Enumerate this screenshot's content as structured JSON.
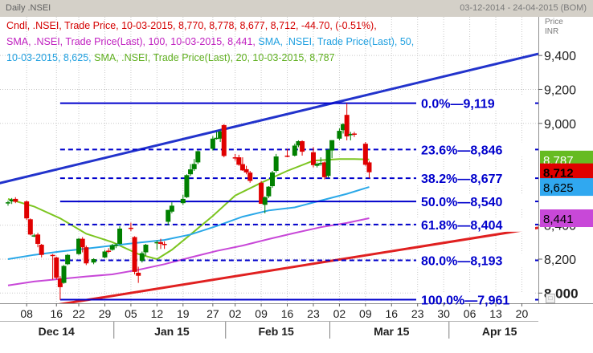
{
  "header": {
    "left_label": "Daily  .NSEI",
    "date_range": "03-12-2014 - 24-04-2015 (BOM)"
  },
  "legend": {
    "candle": "Cndl, .NSEI, Trade Price, 10-03-2015, 8,770, 8,778, 8,677, 8,712, -44.70, (-0.51%),",
    "sma100": "SMA, .NSEI, Trade Price(Last),  100, 10-03-2015, 8,441,",
    "sma50_a": "SMA, .NSEI, Trade Price(Last),  50,",
    "sma50_b": "10-03-2015, 8,625,",
    "sma20": "SMA, .NSEI, Trade Price(Last),  20, 10-03-2015, 8,787"
  },
  "price_axis_header": [
    "Price",
    "INR"
  ],
  "colors": {
    "candle_up": "#008000",
    "candle_down": "#e00000",
    "sma20": "#7cc520",
    "sma50": "#2aa8e8",
    "sma100": "#c848d8",
    "fib": "#0000cc",
    "trend_up": "#2233cc",
    "trend_support": "#e02020",
    "grid": "#c8c8c8",
    "sma20_tag": "#66bb22",
    "last_tag": "#e00000",
    "sma50_tag": "#30a8f0",
    "sma100_tag": "#c848d8"
  },
  "chart_data": {
    "type": "candlestick",
    "title": ".NSEI Daily",
    "ylim": [
      7940,
      9500
    ],
    "yticks": [
      {
        "value": 8000,
        "label": "8,000",
        "highlight": true
      },
      {
        "value": 8200,
        "label": "8,200",
        "highlight": false
      },
      {
        "value": 8400,
        "label": "8,400",
        "highlight": false
      },
      {
        "value": 9000,
        "label": "9,000",
        "highlight": false
      },
      {
        "value": 9200,
        "label": "9,200",
        "highlight": false
      },
      {
        "value": 9400,
        "label": "9,400",
        "highlight": false
      }
    ],
    "xticks": [
      {
        "date": "2014-12-08",
        "label": "08"
      },
      {
        "date": "2014-12-16",
        "label": "16"
      },
      {
        "date": "2014-12-22",
        "label": "22"
      },
      {
        "date": "2014-12-29",
        "label": "29"
      },
      {
        "date": "2015-01-05",
        "label": "05"
      },
      {
        "date": "2015-01-12",
        "label": "12"
      },
      {
        "date": "2015-01-19",
        "label": "19"
      },
      {
        "date": "2015-01-27",
        "label": "27"
      },
      {
        "date": "2015-02-02",
        "label": "02"
      },
      {
        "date": "2015-02-09",
        "label": "09"
      },
      {
        "date": "2015-02-16",
        "label": "16"
      },
      {
        "date": "2015-02-23",
        "label": "23"
      },
      {
        "date": "2015-03-02",
        "label": "02"
      },
      {
        "date": "2015-03-09",
        "label": "09"
      },
      {
        "date": "2015-03-16",
        "label": "16"
      },
      {
        "date": "2015-03-23",
        "label": "23"
      },
      {
        "date": "2015-03-30",
        "label": "30"
      },
      {
        "date": "2015-04-06",
        "label": "06"
      },
      {
        "date": "2015-04-13",
        "label": "13"
      },
      {
        "date": "2015-04-20",
        "label": "20"
      }
    ],
    "months": [
      {
        "date": "2014-12-16",
        "label": "Dec 14"
      },
      {
        "date": "2015-01-16",
        "label": "Jan 15"
      },
      {
        "date": "2015-02-13",
        "label": "Feb 15"
      },
      {
        "date": "2015-03-16",
        "label": "Mar 15"
      },
      {
        "date": "2015-04-14",
        "label": "Apr 15"
      }
    ],
    "month_separators": [
      "2014-12-31",
      "2015-01-30",
      "2015-02-27",
      "2015-03-31"
    ],
    "candles": [
      {
        "date": "2014-12-03",
        "open": 8530,
        "high": 8545,
        "low": 8515,
        "close": 8535
      },
      {
        "date": "2014-12-04",
        "open": 8540,
        "high": 8560,
        "low": 8525,
        "close": 8552
      },
      {
        "date": "2014-12-05",
        "open": 8555,
        "high": 8565,
        "low": 8530,
        "close": 8538
      },
      {
        "date": "2014-12-08",
        "open": 8540,
        "high": 8545,
        "low": 8430,
        "close": 8440
      },
      {
        "date": "2014-12-09",
        "open": 8435,
        "high": 8440,
        "low": 8340,
        "close": 8345
      },
      {
        "date": "2014-12-10",
        "open": 8340,
        "high": 8350,
        "low": 8330,
        "close": 8340
      },
      {
        "date": "2014-12-11",
        "open": 8345,
        "high": 8355,
        "low": 8270,
        "close": 8290
      },
      {
        "date": "2014-12-12",
        "open": 8285,
        "high": 8290,
        "low": 8210,
        "close": 8225
      },
      {
        "date": "2014-12-15",
        "open": 8225,
        "high": 8230,
        "low": 8080,
        "close": 8220
      },
      {
        "date": "2014-12-16",
        "open": 8210,
        "high": 8215,
        "low": 8080,
        "close": 8090
      },
      {
        "date": "2014-12-17",
        "open": 8085,
        "high": 8100,
        "low": 7960,
        "close": 8035
      },
      {
        "date": "2014-12-18",
        "open": 8060,
        "high": 8165,
        "low": 8055,
        "close": 8160
      },
      {
        "date": "2014-12-19",
        "open": 8170,
        "high": 8230,
        "low": 8165,
        "close": 8225
      },
      {
        "date": "2014-12-22",
        "open": 8230,
        "high": 8325,
        "low": 8225,
        "close": 8320
      },
      {
        "date": "2014-12-23",
        "open": 8320,
        "high": 8330,
        "low": 8240,
        "close": 8270
      },
      {
        "date": "2014-12-24",
        "open": 8270,
        "high": 8280,
        "low": 8165,
        "close": 8175
      },
      {
        "date": "2014-12-26",
        "open": 8180,
        "high": 8205,
        "low": 8170,
        "close": 8200
      },
      {
        "date": "2014-12-29",
        "open": 8210,
        "high": 8255,
        "low": 8205,
        "close": 8245
      },
      {
        "date": "2014-12-30",
        "open": 8250,
        "high": 8265,
        "low": 8235,
        "close": 8248
      },
      {
        "date": "2014-12-31",
        "open": 8255,
        "high": 8290,
        "low": 8250,
        "close": 8282
      },
      {
        "date": "2015-01-01",
        "open": 8280,
        "high": 8295,
        "low": 8265,
        "close": 8284
      },
      {
        "date": "2015-01-02",
        "open": 8290,
        "high": 8395,
        "low": 8285,
        "close": 8380
      },
      {
        "date": "2015-01-05",
        "open": 8385,
        "high": 8415,
        "low": 8365,
        "close": 8378
      },
      {
        "date": "2015-01-06",
        "open": 8330,
        "high": 8335,
        "low": 8110,
        "close": 8125
      },
      {
        "date": "2015-01-07",
        "open": 8120,
        "high": 8155,
        "low": 8060,
        "close": 8102
      },
      {
        "date": "2015-01-08",
        "open": 8190,
        "high": 8245,
        "low": 8180,
        "close": 8235
      },
      {
        "date": "2015-01-09",
        "open": 8240,
        "high": 8290,
        "low": 8220,
        "close": 8285
      },
      {
        "date": "2015-01-12",
        "open": 8295,
        "high": 8310,
        "low": 8255,
        "close": 8300
      },
      {
        "date": "2015-01-13",
        "open": 8300,
        "high": 8320,
        "low": 8260,
        "close": 8290
      },
      {
        "date": "2015-01-14",
        "open": 8290,
        "high": 8305,
        "low": 8260,
        "close": 8285
      },
      {
        "date": "2015-01-15",
        "open": 8420,
        "high": 8490,
        "low": 8400,
        "close": 8490
      },
      {
        "date": "2015-01-16",
        "open": 8480,
        "high": 8535,
        "low": 8470,
        "close": 8515
      },
      {
        "date": "2015-01-19",
        "open": 8530,
        "high": 8580,
        "low": 8520,
        "close": 8555
      },
      {
        "date": "2015-01-20",
        "open": 8565,
        "high": 8700,
        "low": 8560,
        "close": 8695
      },
      {
        "date": "2015-01-21",
        "open": 8700,
        "high": 8760,
        "low": 8690,
        "close": 8729
      },
      {
        "date": "2015-01-22",
        "open": 8730,
        "high": 8790,
        "low": 8720,
        "close": 8761
      },
      {
        "date": "2015-01-23",
        "open": 8770,
        "high": 8840,
        "low": 8760,
        "close": 8836
      },
      {
        "date": "2015-01-27",
        "open": 8850,
        "high": 8925,
        "low": 8840,
        "close": 8910
      },
      {
        "date": "2015-01-28",
        "open": 8915,
        "high": 8950,
        "low": 8905,
        "close": 8915
      },
      {
        "date": "2015-01-29",
        "open": 8910,
        "high": 8960,
        "low": 8890,
        "close": 8952
      },
      {
        "date": "2015-01-30",
        "open": 8990,
        "high": 8995,
        "low": 8800,
        "close": 8808
      },
      {
        "date": "2015-02-02",
        "open": 8800,
        "high": 8820,
        "low": 8780,
        "close": 8797
      },
      {
        "date": "2015-02-03",
        "open": 8800,
        "high": 8815,
        "low": 8750,
        "close": 8756
      },
      {
        "date": "2015-02-04",
        "open": 8760,
        "high": 8800,
        "low": 8720,
        "close": 8723
      },
      {
        "date": "2015-02-05",
        "open": 8730,
        "high": 8750,
        "low": 8700,
        "close": 8711
      },
      {
        "date": "2015-02-06",
        "open": 8710,
        "high": 8720,
        "low": 8650,
        "close": 8661
      },
      {
        "date": "2015-02-09",
        "open": 8650,
        "high": 8660,
        "low": 8540,
        "close": 8526
      },
      {
        "date": "2015-02-10",
        "open": 8520,
        "high": 8570,
        "low": 8470,
        "close": 8565
      },
      {
        "date": "2015-02-11",
        "open": 8570,
        "high": 8630,
        "low": 8560,
        "close": 8627
      },
      {
        "date": "2015-02-12",
        "open": 8630,
        "high": 8720,
        "low": 8620,
        "close": 8711
      },
      {
        "date": "2015-02-13",
        "open": 8720,
        "high": 8820,
        "low": 8710,
        "close": 8805
      },
      {
        "date": "2015-02-16",
        "open": 8810,
        "high": 8850,
        "low": 8800,
        "close": 8809
      },
      {
        "date": "2015-02-18",
        "open": 8810,
        "high": 8880,
        "low": 8805,
        "close": 8869
      },
      {
        "date": "2015-02-19",
        "open": 8870,
        "high": 8900,
        "low": 8860,
        "close": 8895
      },
      {
        "date": "2015-02-20",
        "open": 8895,
        "high": 8900,
        "low": 8810,
        "close": 8833
      },
      {
        "date": "2015-02-23",
        "open": 8830,
        "high": 8860,
        "low": 8740,
        "close": 8754
      },
      {
        "date": "2015-02-24",
        "open": 8750,
        "high": 8770,
        "low": 8740,
        "close": 8762
      },
      {
        "date": "2015-02-25",
        "open": 8765,
        "high": 8800,
        "low": 8750,
        "close": 8767
      },
      {
        "date": "2015-02-26",
        "open": 8770,
        "high": 8775,
        "low": 8670,
        "close": 8683
      },
      {
        "date": "2015-02-27",
        "open": 8690,
        "high": 8850,
        "low": 8680,
        "close": 8844
      },
      {
        "date": "2015-02-28",
        "open": 8840,
        "high": 8900,
        "low": 8795,
        "close": 8901
      },
      {
        "date": "2015-03-02",
        "open": 8910,
        "high": 8970,
        "low": 8900,
        "close": 8956
      },
      {
        "date": "2015-03-03",
        "open": 8960,
        "high": 9000,
        "low": 8940,
        "close": 8996
      },
      {
        "date": "2015-03-04",
        "open": 9050,
        "high": 9119,
        "low": 8900,
        "close": 8923
      },
      {
        "date": "2015-03-05",
        "open": 8930,
        "high": 8950,
        "low": 8900,
        "close": 8938
      },
      {
        "date": "2015-03-06",
        "open": 8940,
        "high": 8950,
        "low": 8920,
        "close": 8937
      },
      {
        "date": "2015-03-09",
        "open": 8880,
        "high": 8890,
        "low": 8750,
        "close": 8756
      },
      {
        "date": "2015-03-10",
        "open": 8770,
        "high": 8778,
        "low": 8677,
        "close": 8712
      }
    ],
    "series": [
      {
        "name": "SMA 20",
        "color_key": "sma20",
        "points": [
          [
            "2014-12-03",
            8555
          ],
          [
            "2014-12-10",
            8510
          ],
          [
            "2014-12-17",
            8440
          ],
          [
            "2014-12-24",
            8350
          ],
          [
            "2014-12-31",
            8300
          ],
          [
            "2015-01-07",
            8230
          ],
          [
            "2015-01-12",
            8200
          ],
          [
            "2015-01-16",
            8255
          ],
          [
            "2015-01-21",
            8345
          ],
          [
            "2015-01-27",
            8455
          ],
          [
            "2015-02-02",
            8575
          ],
          [
            "2015-02-09",
            8650
          ],
          [
            "2015-02-16",
            8720
          ],
          [
            "2015-02-23",
            8780
          ],
          [
            "2015-03-02",
            8790
          ],
          [
            "2015-03-06",
            8790
          ],
          [
            "2015-03-10",
            8787
          ]
        ]
      },
      {
        "name": "SMA 50",
        "color_key": "sma50",
        "points": [
          [
            "2014-12-03",
            8200
          ],
          [
            "2014-12-10",
            8225
          ],
          [
            "2014-12-17",
            8245
          ],
          [
            "2014-12-24",
            8262
          ],
          [
            "2014-12-31",
            8280
          ],
          [
            "2015-01-07",
            8297
          ],
          [
            "2015-01-14",
            8313
          ],
          [
            "2015-01-21",
            8345
          ],
          [
            "2015-01-28",
            8395
          ],
          [
            "2015-02-04",
            8450
          ],
          [
            "2015-02-11",
            8487
          ],
          [
            "2015-02-18",
            8505
          ],
          [
            "2015-02-25",
            8545
          ],
          [
            "2015-03-04",
            8585
          ],
          [
            "2015-03-10",
            8625
          ]
        ]
      },
      {
        "name": "SMA 100",
        "color_key": "sma100",
        "points": [
          [
            "2014-12-03",
            8045
          ],
          [
            "2014-12-10",
            8068
          ],
          [
            "2014-12-17",
            8083
          ],
          [
            "2014-12-24",
            8098
          ],
          [
            "2014-12-31",
            8110
          ],
          [
            "2015-01-07",
            8137
          ],
          [
            "2015-01-14",
            8170
          ],
          [
            "2015-01-21",
            8210
          ],
          [
            "2015-01-28",
            8248
          ],
          [
            "2015-02-04",
            8280
          ],
          [
            "2015-02-11",
            8318
          ],
          [
            "2015-02-18",
            8354
          ],
          [
            "2015-02-25",
            8388
          ],
          [
            "2015-03-04",
            8413
          ],
          [
            "2015-03-10",
            8441
          ]
        ]
      }
    ],
    "trendlines": [
      {
        "name": "upper trend line",
        "color_key": "trend_up",
        "from": [
          "2014-12-03",
          8665
        ],
        "to": [
          "2015-04-24",
          9410
        ]
      },
      {
        "name": "support trend line",
        "color_key": "trend_support",
        "from": [
          "2014-12-03",
          7895
        ],
        "to": [
          "2015-04-24",
          8385
        ]
      }
    ],
    "fibonacci": {
      "start_date": "2014-12-17",
      "label_date": "2015-03-10",
      "levels": [
        {
          "label": "0.0%",
          "value_label": "9,119",
          "value": 9119,
          "solid": true
        },
        {
          "label": "23.6%",
          "value_label": "8,846",
          "value": 8846,
          "solid": false
        },
        {
          "label": "38.2%",
          "value_label": "8,677",
          "value": 8677,
          "solid": false
        },
        {
          "label": "50.0%",
          "value_label": "8,540",
          "value": 8540,
          "solid": true
        },
        {
          "label": "61.8%",
          "value_label": "8,404",
          "value": 8404,
          "solid": false
        },
        {
          "label": "80.0%",
          "value_label": "8,193",
          "value": 8193,
          "solid": false
        },
        {
          "label": "100.0%",
          "value_label": "7,961",
          "value": 7961,
          "solid": true
        }
      ]
    },
    "value_tags": [
      {
        "label": "8,787",
        "value": 8787,
        "color_key": "sma20_tag",
        "text_color": "#ffffff"
      },
      {
        "label": "8,712",
        "value": 8712,
        "color_key": "last_tag",
        "text_color": "#000000"
      },
      {
        "label": "8,625",
        "value": 8625,
        "color_key": "sma50_tag",
        "text_color": "#000000"
      },
      {
        "label": "8,441",
        "value": 8441,
        "color_key": "sma100_tag",
        "text_color": "#000000"
      }
    ]
  }
}
